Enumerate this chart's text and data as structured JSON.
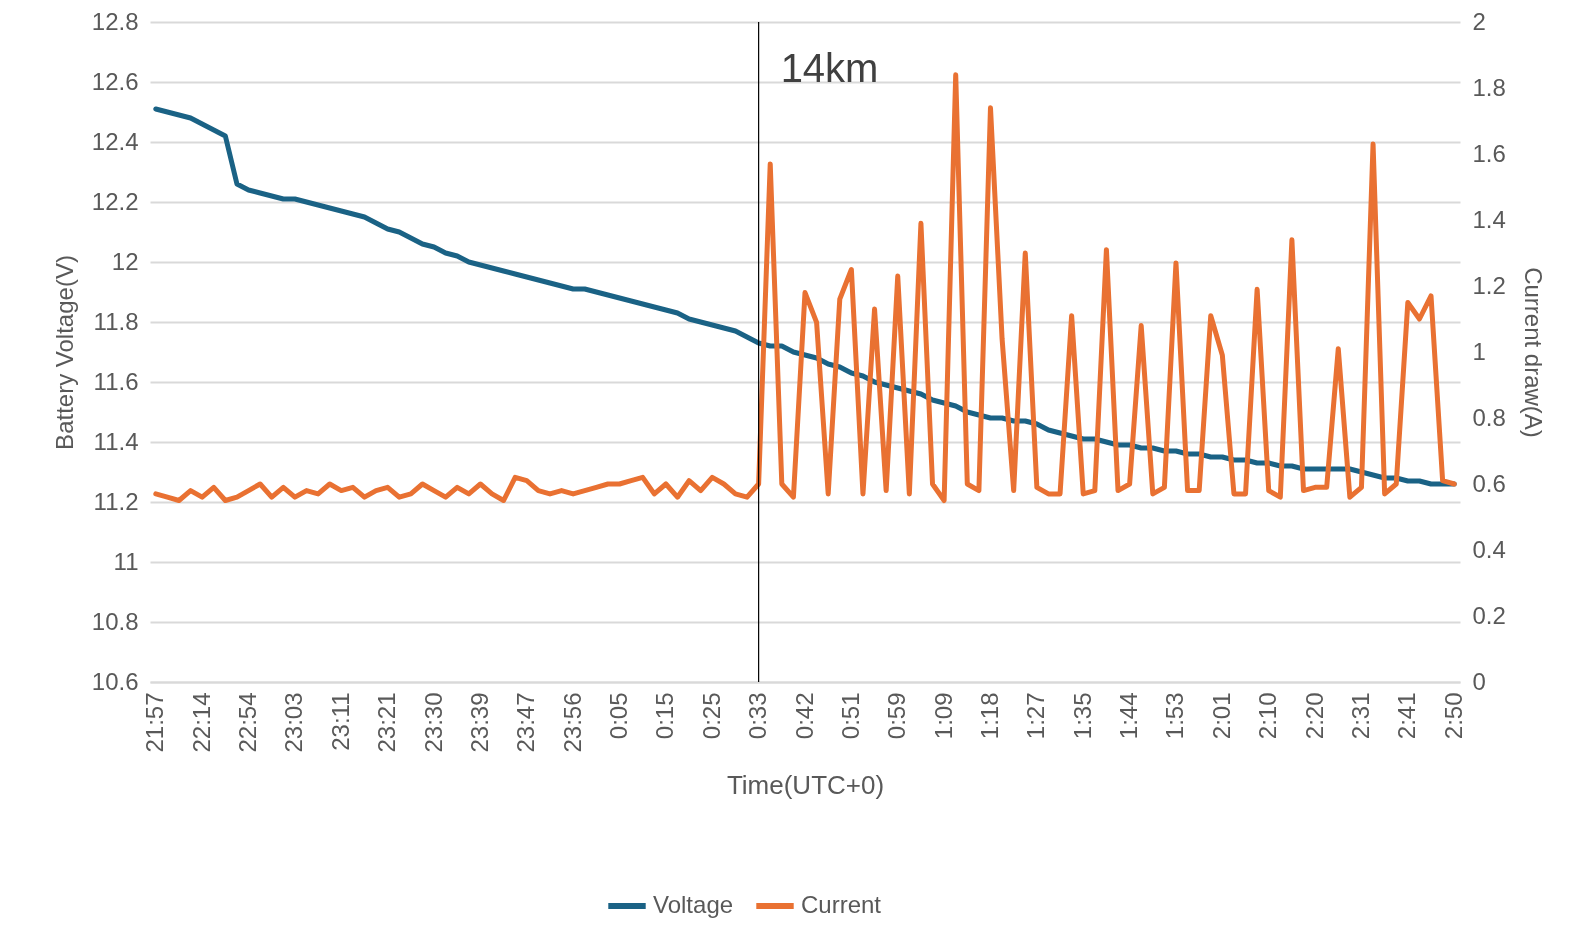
{
  "chart_data": {
    "type": "line",
    "xlabel": "Time(UTC+0)",
    "ylabel": "Battery Voltage(V)",
    "y2label": "Current draw(A)",
    "categories": [
      "21:57",
      null,
      null,
      null,
      "22:14",
      null,
      null,
      null,
      "22:54",
      null,
      null,
      null,
      "23:03",
      null,
      null,
      null,
      "23:11",
      null,
      null,
      null,
      "23:21",
      null,
      null,
      null,
      "23:30",
      null,
      null,
      null,
      "23:39",
      null,
      null,
      null,
      "23:47",
      null,
      null,
      null,
      "23:56",
      null,
      null,
      null,
      "0:05",
      null,
      null,
      null,
      "0:15",
      null,
      null,
      null,
      "0:25",
      null,
      null,
      null,
      "0:33",
      null,
      null,
      null,
      "0:42",
      null,
      null,
      null,
      "0:51",
      null,
      null,
      null,
      "0:59",
      null,
      null,
      null,
      "1:09",
      null,
      null,
      null,
      "1:18",
      null,
      null,
      null,
      "1:27",
      null,
      null,
      null,
      "1:35",
      null,
      null,
      null,
      "1:44",
      null,
      null,
      null,
      "1:53",
      null,
      null,
      null,
      "2:01",
      null,
      null,
      null,
      "2:10",
      null,
      null,
      null,
      "2:20",
      null,
      null,
      null,
      "2:31",
      null,
      null,
      null,
      "2:41",
      null,
      null,
      null,
      "2:50"
    ],
    "series": [
      {
        "name": "Voltage",
        "color": "#1a6285",
        "values": [
          12.51,
          12.5,
          12.49,
          12.48,
          12.46,
          12.44,
          12.42,
          12.26,
          12.24,
          12.23,
          12.22,
          12.21,
          12.21,
          12.2,
          12.19,
          12.18,
          12.17,
          12.16,
          12.15,
          12.13,
          12.11,
          12.1,
          12.08,
          12.06,
          12.05,
          12.03,
          12.02,
          12,
          11.99,
          11.98,
          11.97,
          11.96,
          11.95,
          11.94,
          11.93,
          11.92,
          11.91,
          11.91,
          11.9,
          11.89,
          11.88,
          11.87,
          11.86,
          11.85,
          11.84,
          11.83,
          11.81,
          11.8,
          11.79,
          11.78,
          11.77,
          11.75,
          11.73,
          11.72,
          11.72,
          11.7,
          11.69,
          11.68,
          11.66,
          11.65,
          11.63,
          11.62,
          11.6,
          11.59,
          11.58,
          11.57,
          11.56,
          11.54,
          11.53,
          11.52,
          11.5,
          11.49,
          11.48,
          11.48,
          11.47,
          11.47,
          11.46,
          11.44,
          11.43,
          11.42,
          11.41,
          11.41,
          11.4,
          11.39,
          11.39,
          11.38,
          11.38,
          11.37,
          11.37,
          11.36,
          11.36,
          11.35,
          11.35,
          11.34,
          11.34,
          11.33,
          11.33,
          11.32,
          11.32,
          11.31,
          11.31,
          11.31,
          11.31,
          11.31,
          11.3,
          11.29,
          11.28,
          11.28,
          11.27,
          11.27,
          11.26,
          11.26,
          11.26
        ]
      },
      {
        "name": "Current",
        "color": "#e97132",
        "axis": "y2",
        "values": [
          0.57,
          0.56,
          0.55,
          0.58,
          0.56,
          0.59,
          0.55,
          0.56,
          0.58,
          0.6,
          0.56,
          0.59,
          0.56,
          0.58,
          0.57,
          0.6,
          0.58,
          0.59,
          0.56,
          0.58,
          0.59,
          0.56,
          0.57,
          0.6,
          0.58,
          0.56,
          0.59,
          0.57,
          0.6,
          0.57,
          0.55,
          0.62,
          0.61,
          0.58,
          0.57,
          0.58,
          0.57,
          0.58,
          0.59,
          0.6,
          0.6,
          0.61,
          0.62,
          0.57,
          0.6,
          0.56,
          0.61,
          0.58,
          0.62,
          0.6,
          0.57,
          0.56,
          0.6,
          1.57,
          0.6,
          0.56,
          1.18,
          1.09,
          0.57,
          1.16,
          1.25,
          0.57,
          1.13,
          0.58,
          1.23,
          0.57,
          1.39,
          0.6,
          0.55,
          1.84,
          0.6,
          0.58,
          1.74,
          1.04,
          0.58,
          1.3,
          0.59,
          0.57,
          0.57,
          1.11,
          0.57,
          0.58,
          1.31,
          0.58,
          0.6,
          1.08,
          0.57,
          0.59,
          1.27,
          0.58,
          0.58,
          1.11,
          0.99,
          0.57,
          0.57,
          1.19,
          0.58,
          0.56,
          1.34,
          0.58,
          0.59,
          0.59,
          1.01,
          0.56,
          0.59,
          1.63,
          0.57,
          0.6,
          1.15,
          1.1,
          1.17,
          0.61,
          0.6
        ]
      }
    ],
    "ylim": [
      10.6,
      12.8
    ],
    "yticks": [
      10.6,
      10.8,
      11,
      11.2,
      11.4,
      11.6,
      11.8,
      12,
      12.2,
      12.4,
      12.6,
      12.8
    ],
    "y2lim": [
      0,
      2
    ],
    "y2ticks": [
      0,
      0.2,
      0.4,
      0.6,
      0.8,
      1,
      1.2,
      1.4,
      1.6,
      1.8,
      2
    ],
    "ref_lines": [
      {
        "axis": "x",
        "value": "0:33",
        "label": "14km",
        "color": "#000000"
      }
    ],
    "grid": "y",
    "legend": "bottom"
  }
}
